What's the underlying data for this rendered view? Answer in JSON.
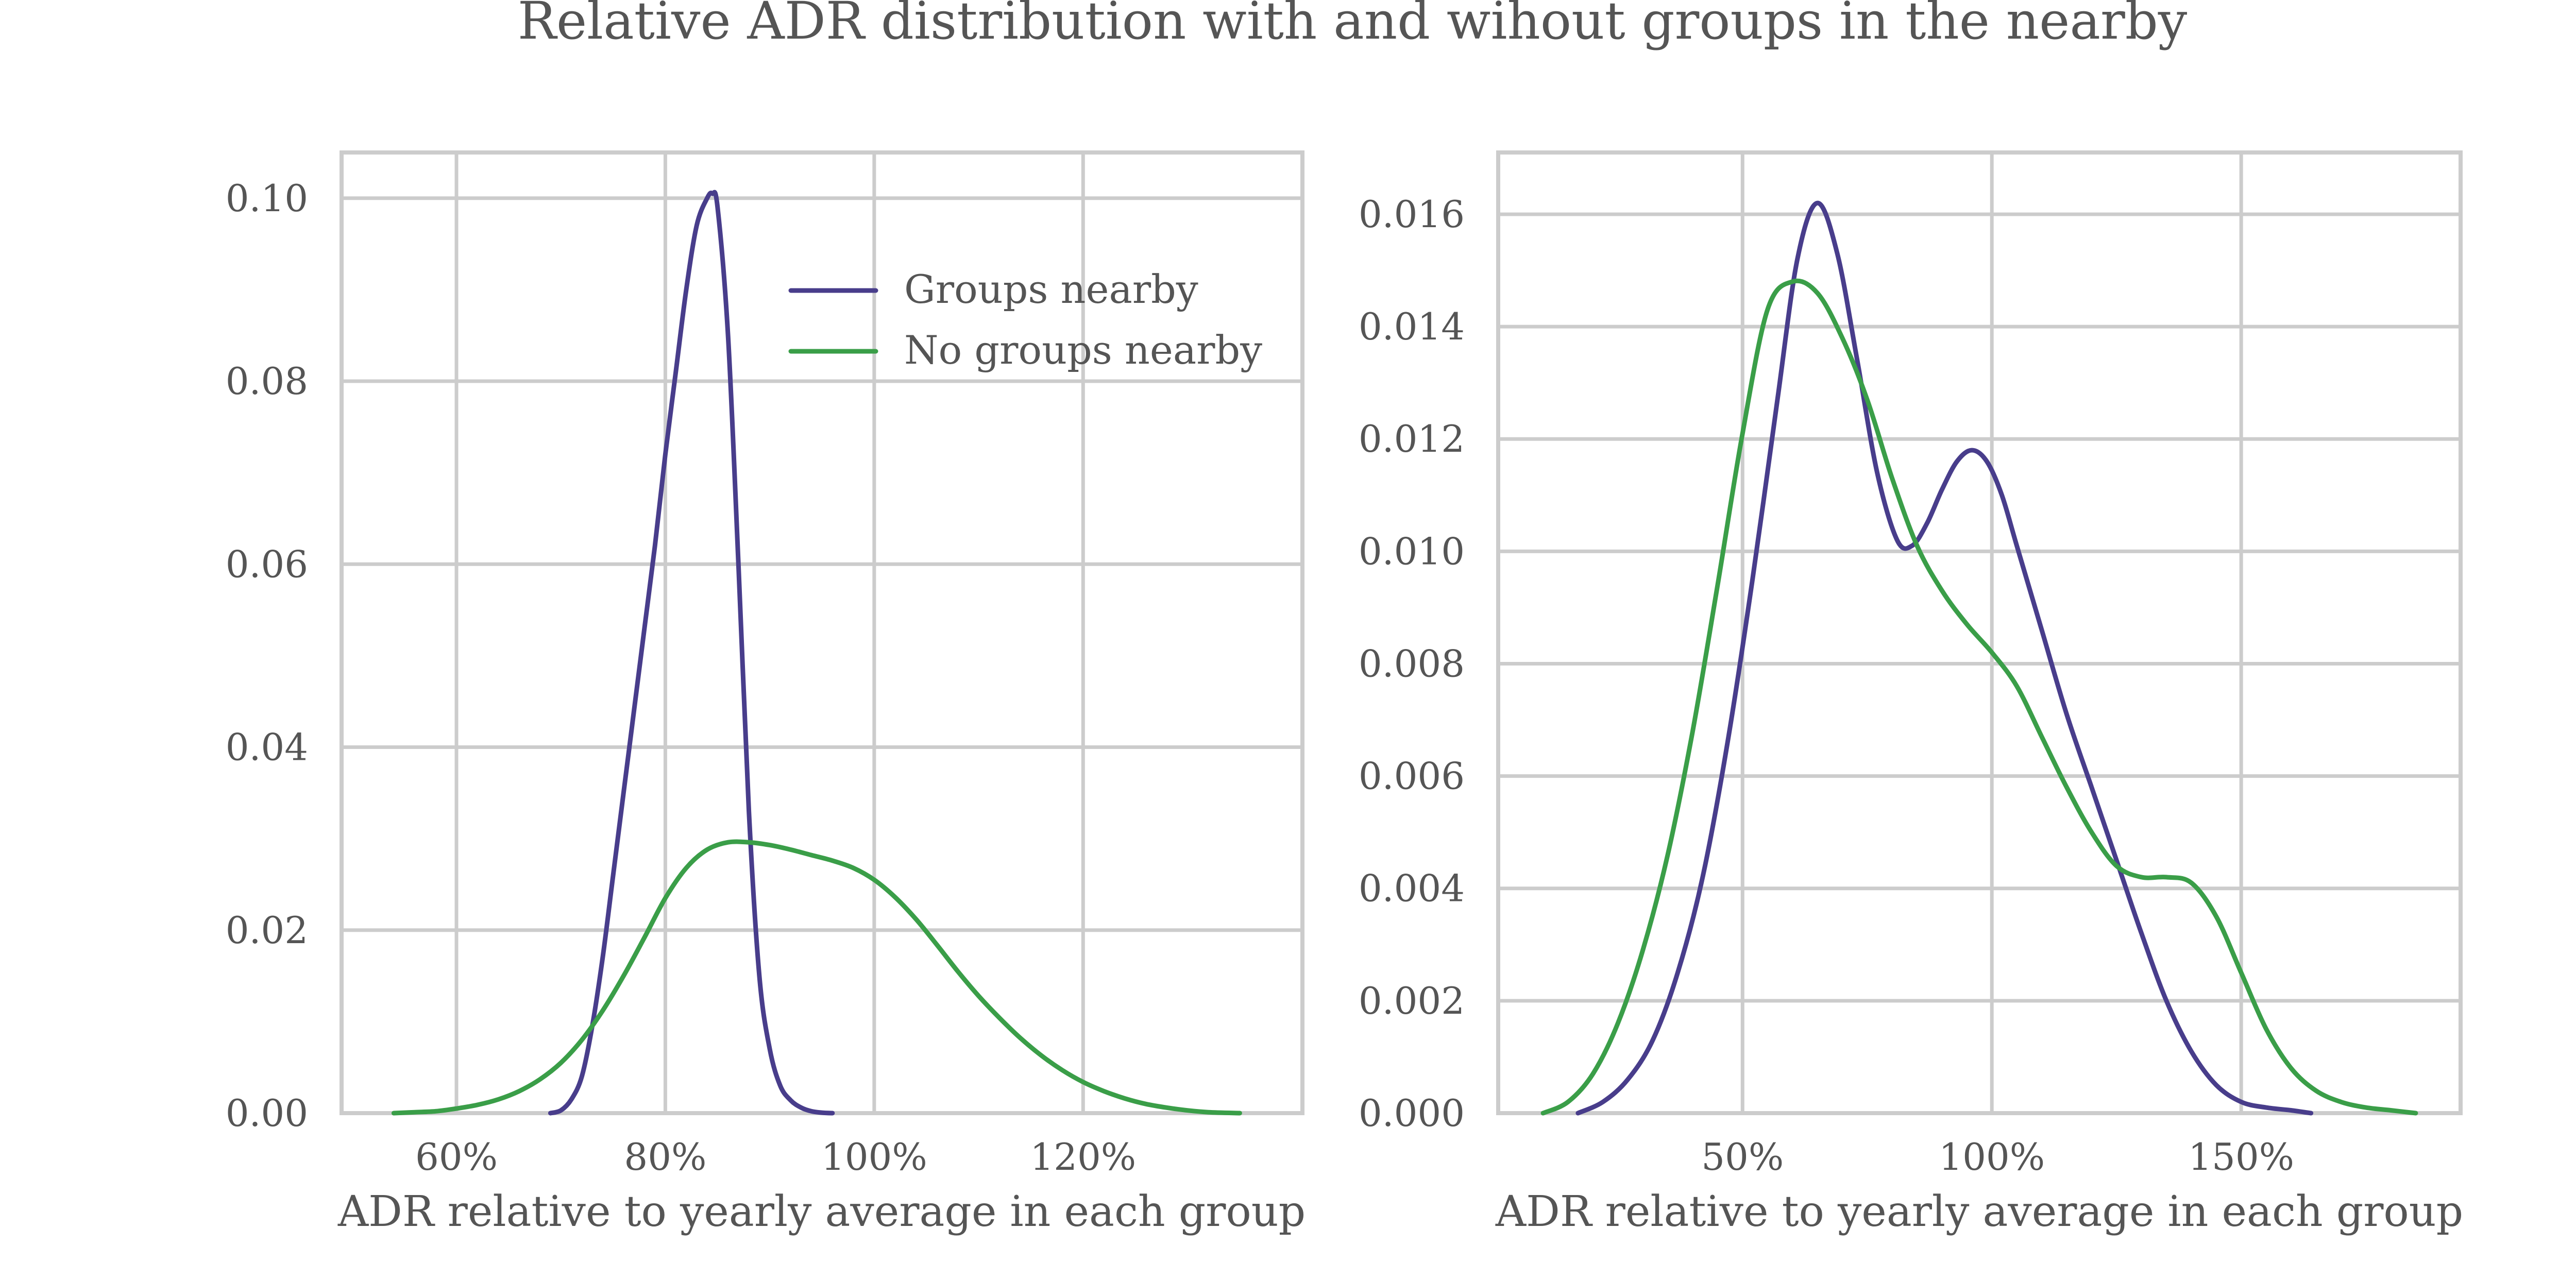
{
  "colors": {
    "groups_nearby": "#483d8b",
    "no_groups_nearby": "#3a9e48",
    "text": "#555555",
    "grid": "#cccccc"
  },
  "figure": {
    "title": "Relative ADR distribution with and wihout groups in the nearby"
  },
  "chart_data": [
    {
      "type": "line",
      "xlabel": "ADR relative to yearly average in each group",
      "ylabel": "",
      "xlim": [
        49,
        141
      ],
      "ylim": [
        0,
        0.105
      ],
      "xticks": [
        60,
        80,
        100,
        120
      ],
      "xtick_labels": [
        "60%",
        "80%",
        "100%",
        "120%"
      ],
      "yticks": [
        0,
        0.02,
        0.04,
        0.06,
        0.08,
        0.1
      ],
      "ytick_labels": [
        "0.00",
        "0.02",
        "0.04",
        "0.06",
        "0.08",
        "0.10"
      ],
      "grid": true,
      "legend": "upper right",
      "series": [
        {
          "name": "Groups nearby",
          "color": "#483d8b",
          "x": [
            69,
            70,
            71,
            72,
            73,
            74,
            75,
            76,
            77,
            78,
            79,
            80,
            81,
            82,
            83,
            84,
            84.5,
            85,
            86,
            87,
            88,
            89,
            90,
            91,
            92,
            93,
            94,
            95,
            96
          ],
          "y": [
            0,
            0.0003,
            0.0015,
            0.004,
            0.0095,
            0.017,
            0.026,
            0.035,
            0.044,
            0.053,
            0.062,
            0.072,
            0.081,
            0.09,
            0.097,
            0.1,
            0.1005,
            0.099,
            0.085,
            0.06,
            0.033,
            0.015,
            0.007,
            0.003,
            0.0014,
            0.0006,
            0.0002,
            5e-05,
            0
          ]
        },
        {
          "name": "No groups nearby",
          "color": "#3a9e48",
          "x": [
            54,
            56,
            58,
            60,
            62,
            64,
            66,
            68,
            70,
            72,
            74,
            76,
            78,
            80,
            82,
            84,
            86,
            88,
            90,
            92,
            94,
            96,
            98,
            100,
            102,
            104,
            106,
            108,
            110,
            112,
            114,
            116,
            118,
            120,
            122,
            124,
            126,
            128,
            130,
            132,
            135
          ],
          "y": [
            0,
            0.0001,
            0.0002,
            0.0005,
            0.0009,
            0.0015,
            0.0024,
            0.0037,
            0.0055,
            0.008,
            0.0112,
            0.015,
            0.0192,
            0.0235,
            0.0268,
            0.0288,
            0.0296,
            0.0296,
            0.0293,
            0.0288,
            0.0282,
            0.0276,
            0.0268,
            0.0255,
            0.0236,
            0.0212,
            0.0184,
            0.0155,
            0.0128,
            0.0104,
            0.0082,
            0.0063,
            0.0047,
            0.0034,
            0.0024,
            0.0016,
            0.001,
            0.0006,
            0.0003,
            0.0001,
            0
          ]
        }
      ]
    },
    {
      "type": "line",
      "xlabel": "ADR relative to yearly average in each group",
      "ylabel": "",
      "xlim": [
        1,
        194
      ],
      "ylim": [
        0,
        0.0171
      ],
      "xticks": [
        50,
        100,
        150
      ],
      "xtick_labels": [
        "50%",
        "100%",
        "150%"
      ],
      "yticks": [
        0,
        0.002,
        0.004,
        0.006,
        0.008,
        0.01,
        0.012,
        0.014,
        0.016
      ],
      "ytick_labels": [
        "0.000",
        "0.002",
        "0.004",
        "0.006",
        "0.008",
        "0.010",
        "0.012",
        "0.014",
        "0.016"
      ],
      "grid": true,
      "series": [
        {
          "name": "Groups nearby",
          "color": "#483d8b",
          "x": [
            17,
            22,
            27,
            32,
            37,
            42,
            47,
            52,
            57,
            61,
            65,
            69,
            73,
            77,
            81,
            84,
            87,
            90,
            93,
            96,
            99,
            102,
            105,
            110,
            115,
            120,
            125,
            130,
            135,
            140,
            145,
            150,
            155,
            160,
            164
          ],
          "y": [
            0,
            0.0002,
            0.0006,
            0.0013,
            0.0025,
            0.0042,
            0.0066,
            0.0095,
            0.0127,
            0.0152,
            0.0162,
            0.0153,
            0.0134,
            0.0114,
            0.0102,
            0.0101,
            0.0105,
            0.0111,
            0.0116,
            0.0118,
            0.0116,
            0.011,
            0.0101,
            0.0086,
            0.0071,
            0.0058,
            0.0045,
            0.0032,
            0.002,
            0.0011,
            0.0005,
            0.0002,
            0.0001,
            5e-05,
            0
          ]
        },
        {
          "name": "No groups nearby",
          "color": "#3a9e48",
          "x": [
            10,
            15,
            20,
            25,
            30,
            35,
            40,
            45,
            50,
            55,
            60,
            65,
            70,
            75,
            80,
            85,
            90,
            95,
            100,
            105,
            110,
            115,
            120,
            125,
            130,
            135,
            140,
            145,
            150,
            155,
            160,
            165,
            170,
            175,
            180,
            185
          ],
          "y": [
            0,
            0.0002,
            0.0007,
            0.0016,
            0.0029,
            0.0046,
            0.0068,
            0.0094,
            0.0121,
            0.0143,
            0.0148,
            0.0146,
            0.0138,
            0.0127,
            0.0113,
            0.0101,
            0.0093,
            0.0087,
            0.0082,
            0.0076,
            0.0067,
            0.0058,
            0.005,
            0.0044,
            0.0042,
            0.0042,
            0.0041,
            0.0035,
            0.0025,
            0.0015,
            0.0008,
            0.0004,
            0.0002,
            0.0001,
            5e-05,
            0
          ]
        }
      ]
    }
  ]
}
